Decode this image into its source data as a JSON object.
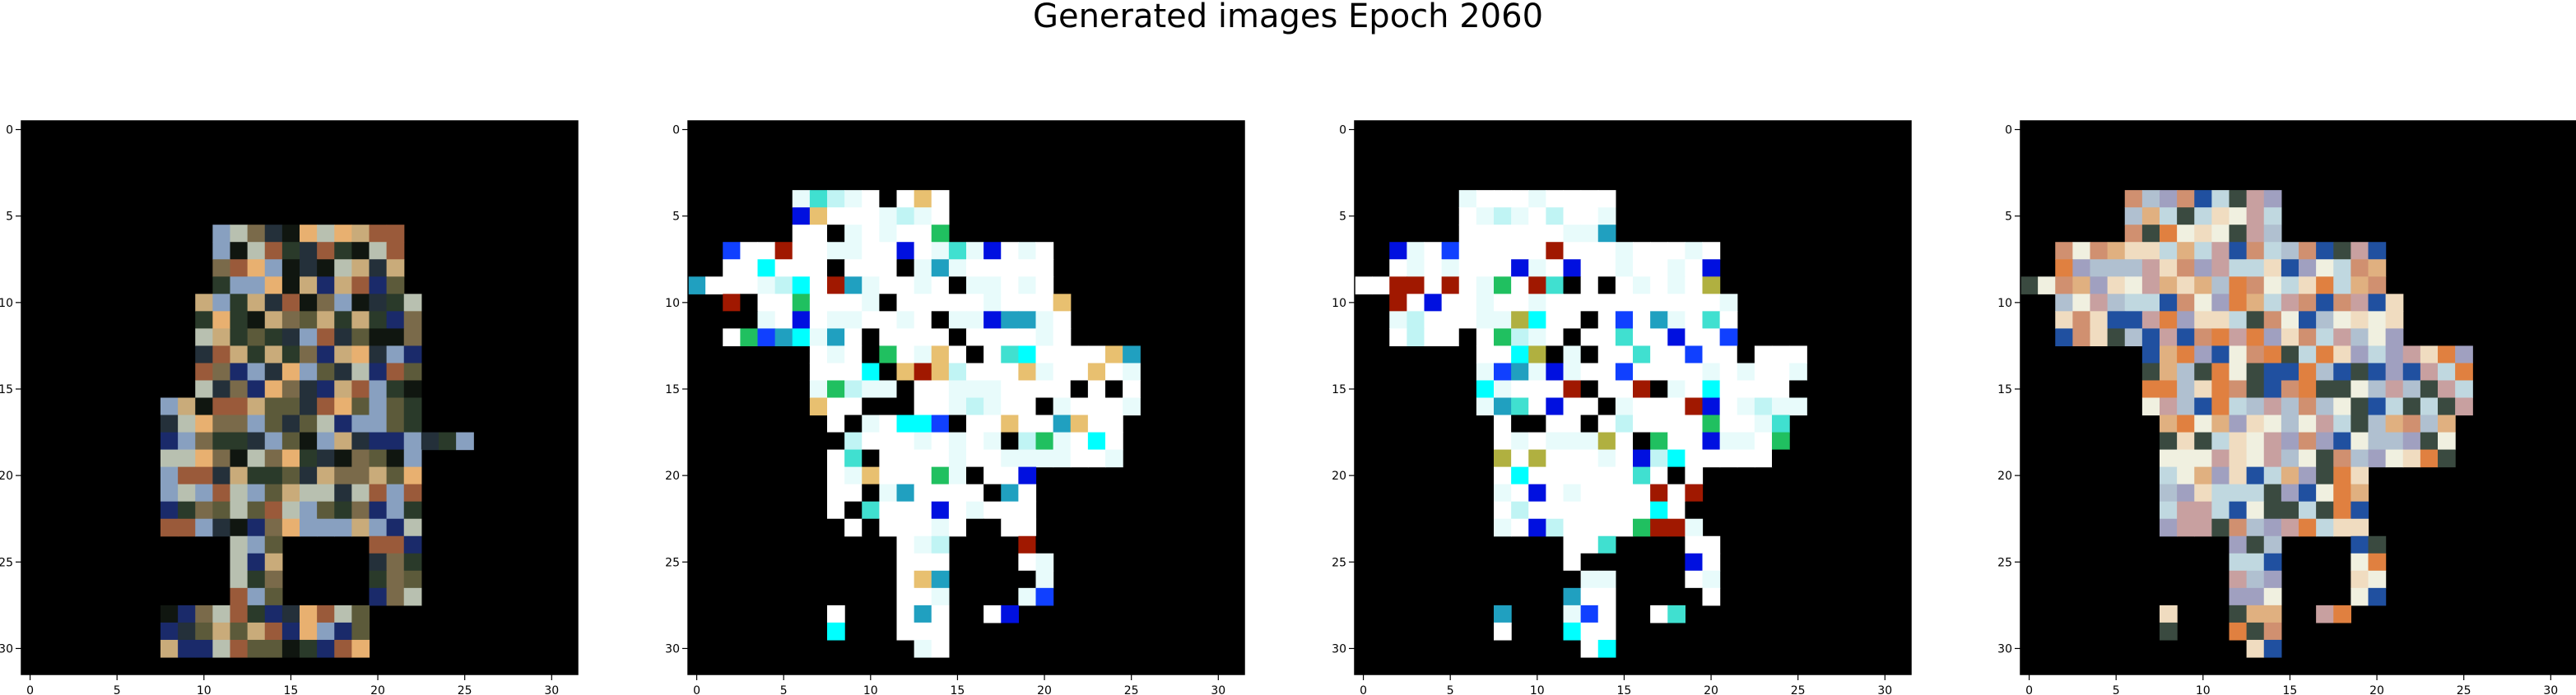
{
  "figure": {
    "title": "Generated images Epoch 2060"
  },
  "chart_data": [
    {
      "type": "heatmap",
      "x_ticks": [
        0,
        5,
        10,
        15,
        20,
        25,
        30
      ],
      "y_ticks": [
        0,
        5,
        10,
        15,
        20,
        25,
        30
      ],
      "xlim": [
        -0.5,
        31.5
      ],
      "ylim": [
        31.5,
        -0.5
      ],
      "grid": false,
      "palette": [
        "#000000",
        "#101610",
        "#2a3a2a",
        "#5c5a3a",
        "#7a6a4a",
        "#9a5a3a",
        "#c9ab7a",
        "#e8b070",
        "#b8c0b0",
        "#24303a",
        "#1a2a6a",
        "#88a0c0"
      ]
    },
    {
      "type": "heatmap",
      "x_ticks": [
        0,
        5,
        10,
        15,
        20,
        25,
        30
      ],
      "y_ticks": [
        0,
        5,
        10,
        15,
        20,
        25,
        30
      ],
      "xlim": [
        -0.5,
        31.5
      ],
      "ylim": [
        31.5,
        -0.5
      ],
      "grid": false,
      "palette": [
        "#000000",
        "#ffffff",
        "#e8fbfb",
        "#c0f4f4",
        "#40e0d0",
        "#00ffff",
        "#20a0c0",
        "#1040ff",
        "#0010e0",
        "#20c060",
        "#a01800",
        "#e8c070"
      ]
    },
    {
      "type": "heatmap",
      "x_ticks": [
        0,
        5,
        10,
        15,
        20,
        25,
        30
      ],
      "y_ticks": [
        0,
        5,
        10,
        15,
        20,
        25,
        30
      ],
      "xlim": [
        -0.5,
        31.5
      ],
      "ylim": [
        31.5,
        -0.5
      ],
      "grid": false,
      "palette": [
        "#000000",
        "#ffffff",
        "#e8fbfb",
        "#c0f4f4",
        "#40e0d0",
        "#00ffff",
        "#20a0c0",
        "#1040ff",
        "#0010e0",
        "#20c060",
        "#a01800",
        "#b0b040"
      ]
    },
    {
      "type": "heatmap",
      "x_ticks": [
        0,
        5,
        10,
        15,
        20,
        25,
        30
      ],
      "y_ticks": [
        0,
        5,
        10,
        15,
        20,
        25,
        30
      ],
      "xlim": [
        -0.5,
        31.5
      ],
      "ylim": [
        31.5,
        -0.5
      ],
      "grid": false,
      "palette": [
        "#000000",
        "#f0dcc0",
        "#e0b080",
        "#c8a0a0",
        "#f0f0e0",
        "#d09070",
        "#b0c0d0",
        "#e08040",
        "#3a4a40",
        "#2050a0",
        "#c0d8e0",
        "#a0a0c0"
      ]
    }
  ]
}
